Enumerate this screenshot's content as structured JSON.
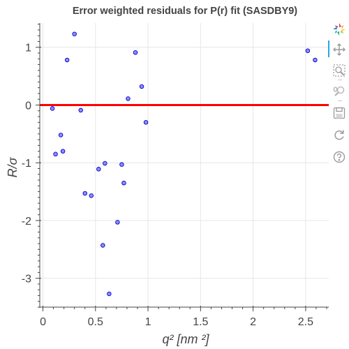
{
  "chart_data": {
    "type": "scatter",
    "title": "Error weighted residuals for P(r) fit (SASDBY9)",
    "xlabel": "q² [nm ²]",
    "ylabel": "R/σ",
    "xlim": [
      -0.03,
      2.72
    ],
    "ylim": [
      -3.5,
      1.42
    ],
    "x_ticks": [
      0,
      0.5,
      1,
      1.5,
      2,
      2.5
    ],
    "x_tick_labels": [
      "0",
      "0.5",
      "1",
      "1.5",
      "2",
      "2.5"
    ],
    "y_ticks": [
      1,
      0,
      -1,
      -2,
      -3
    ],
    "y_tick_labels": [
      "1",
      "0",
      "-1",
      "-2",
      "-3"
    ],
    "grid": true,
    "reference_line": {
      "y": 0,
      "color": "#ff0000"
    },
    "marker_fill": "#8c8cff",
    "marker_stroke": "#0000cc",
    "points": [
      {
        "x": 0.09,
        "y": -0.06
      },
      {
        "x": 0.12,
        "y": -0.85
      },
      {
        "x": 0.17,
        "y": -0.52
      },
      {
        "x": 0.19,
        "y": -0.8
      },
      {
        "x": 0.23,
        "y": 0.78
      },
      {
        "x": 0.3,
        "y": 1.23
      },
      {
        "x": 0.36,
        "y": -0.09
      },
      {
        "x": 0.4,
        "y": -1.53
      },
      {
        "x": 0.46,
        "y": -1.57
      },
      {
        "x": 0.53,
        "y": -1.11
      },
      {
        "x": 0.57,
        "y": -2.43
      },
      {
        "x": 0.59,
        "y": -1.01
      },
      {
        "x": 0.63,
        "y": -3.27
      },
      {
        "x": 0.71,
        "y": -2.03
      },
      {
        "x": 0.75,
        "y": -1.03
      },
      {
        "x": 0.77,
        "y": -1.35
      },
      {
        "x": 0.81,
        "y": 0.11
      },
      {
        "x": 0.88,
        "y": 0.91
      },
      {
        "x": 0.94,
        "y": 0.32
      },
      {
        "x": 0.98,
        "y": -0.3
      },
      {
        "x": 2.52,
        "y": 0.94
      },
      {
        "x": 2.59,
        "y": 0.78
      }
    ]
  },
  "toolbar": {
    "tools": [
      {
        "name": "bokeh-logo-icon"
      },
      {
        "name": "pan-tool-icon",
        "active": true
      },
      {
        "name": "box-zoom-tool-icon"
      },
      {
        "name": "wheel-zoom-tool-icon"
      },
      {
        "name": "save-tool-icon"
      },
      {
        "name": "reset-tool-icon"
      },
      {
        "name": "help-tool-icon"
      }
    ],
    "accent": "#26aae1"
  }
}
